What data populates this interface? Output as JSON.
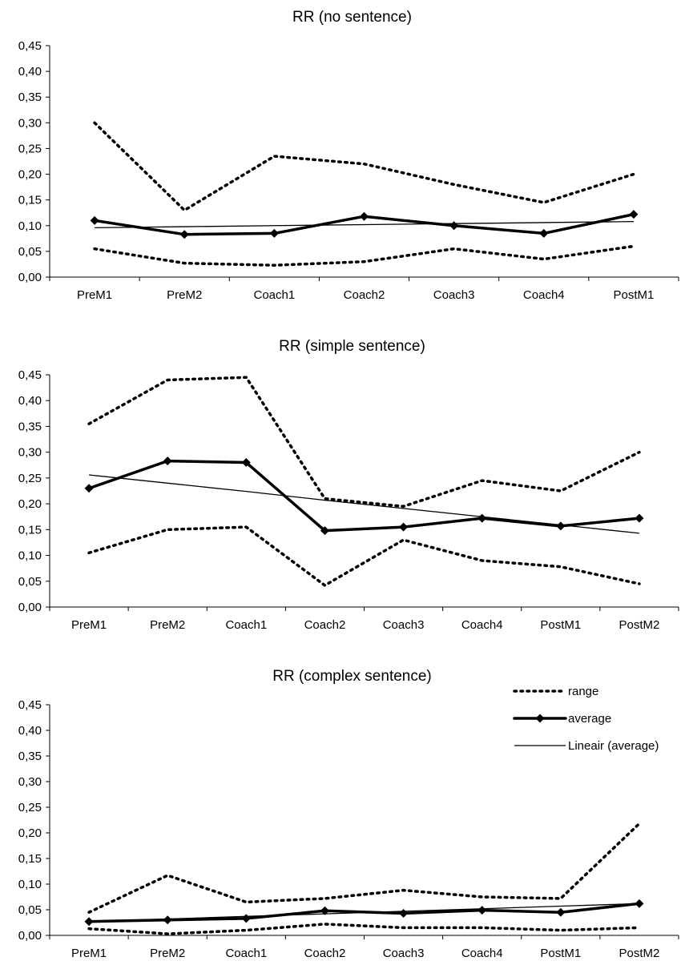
{
  "chart_data": [
    {
      "type": "line",
      "title": "RR (no sentence)",
      "categories": [
        "PreM1",
        "PreM2",
        "Coach1",
        "Coach2",
        "Coach3",
        "Coach4",
        "PostM1"
      ],
      "ylim": [
        0,
        0.45
      ],
      "ytick_labels": [
        "0,00",
        "0,05",
        "0,10",
        "0,15",
        "0,20",
        "0,25",
        "0,30",
        "0,35",
        "0,40",
        "0,45"
      ],
      "grid": false,
      "series": [
        {
          "style": "range-upper",
          "values": [
            0.3,
            0.13,
            0.235,
            0.22,
            0.18,
            0.145,
            0.2
          ]
        },
        {
          "style": "range-lower",
          "values": [
            0.055,
            0.027,
            0.023,
            0.03,
            0.055,
            0.035,
            0.06
          ]
        },
        {
          "style": "average",
          "values": [
            0.11,
            0.083,
            0.085,
            0.118,
            0.1,
            0.085,
            0.122
          ]
        },
        {
          "style": "trend",
          "values": [
            0.096,
            0.098,
            0.1,
            0.102,
            0.104,
            0.106,
            0.108
          ]
        }
      ]
    },
    {
      "type": "line",
      "title": "RR (simple sentence)",
      "categories": [
        "PreM1",
        "PreM2",
        "Coach1",
        "Coach2",
        "Coach3",
        "Coach4",
        "PostM1",
        "PostM2"
      ],
      "ylim": [
        0,
        0.45
      ],
      "ytick_labels": [
        "0,00",
        "0,05",
        "0,10",
        "0,15",
        "0,20",
        "0,25",
        "0,30",
        "0,35",
        "0,40",
        "0,45"
      ],
      "grid": false,
      "series": [
        {
          "style": "range-upper",
          "values": [
            0.355,
            0.44,
            0.445,
            0.21,
            0.195,
            0.245,
            0.225,
            0.3
          ]
        },
        {
          "style": "range-lower",
          "values": [
            0.105,
            0.15,
            0.155,
            0.042,
            0.13,
            0.09,
            0.078,
            0.045
          ]
        },
        {
          "style": "average",
          "values": [
            0.23,
            0.283,
            0.28,
            0.148,
            0.155,
            0.172,
            0.157,
            0.172
          ]
        },
        {
          "style": "trend",
          "values": [
            0.256,
            0.24,
            0.224,
            0.207,
            0.191,
            0.175,
            0.159,
            0.143
          ]
        }
      ]
    },
    {
      "type": "line",
      "title": "RR (complex sentence)",
      "categories": [
        "PreM1",
        "PreM2",
        "Coach1",
        "Coach2",
        "Coach3",
        "Coach4",
        "PostM1",
        "PostM2"
      ],
      "ylim": [
        0,
        0.45
      ],
      "ytick_labels": [
        "0,00",
        "0,05",
        "0,10",
        "0,15",
        "0,20",
        "0,25",
        "0,30",
        "0,35",
        "0,40",
        "0,45"
      ],
      "grid": false,
      "legend": {
        "placement": "top-right",
        "entries": [
          {
            "label": "range",
            "style": "range"
          },
          {
            "label": "average",
            "style": "average"
          },
          {
            "label": "Lineair  (average)",
            "style": "trend"
          }
        ]
      },
      "series": [
        {
          "style": "range-upper",
          "values": [
            0.045,
            0.117,
            0.065,
            0.072,
            0.088,
            0.075,
            0.072,
            0.218
          ]
        },
        {
          "style": "range-lower",
          "values": [
            0.013,
            0.003,
            0.01,
            0.022,
            0.015,
            0.015,
            0.01,
            0.015
          ]
        },
        {
          "style": "average",
          "values": [
            0.027,
            0.03,
            0.033,
            0.048,
            0.043,
            0.049,
            0.045,
            0.062
          ]
        },
        {
          "style": "trend",
          "values": [
            0.027,
            0.032,
            0.037,
            0.042,
            0.047,
            0.052,
            0.057,
            0.062
          ]
        }
      ]
    }
  ]
}
